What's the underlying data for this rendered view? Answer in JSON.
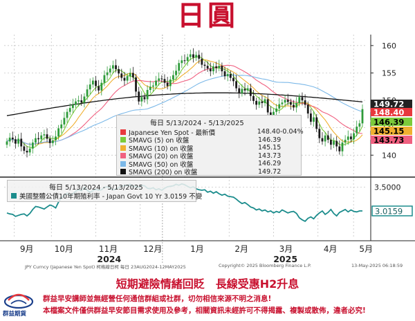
{
  "title": "日圓",
  "subtitle": "短期避險情緒回貶　長線受惠H2升息",
  "disclaimer_1": "群益早安講師並無經營任何通信群組或社群，切勿相信來源不明之消息!",
  "disclaimer_2": "本檔案文件僅供群益早安節目需求使用及參考，相關資訊未經許可不得揭露、複製或散佈，違者必究!",
  "logo_text": "群益期貨",
  "footer": {
    "left": "JPY Curncy (Japanese Yen Spot) 柯格線日柯 每日 23AUG2024-12MAY2025",
    "mid": "Copyright© 2025 Bloomberg Finance L.P.",
    "right": "13-May-2025 06:18:59"
  },
  "legend_main": {
    "date": "每日 5/13/2024 - 5/13/2025",
    "rows": [
      {
        "name": "Japanese Yen Spot - 最新價",
        "value": "148.40",
        "change": "-0.04%",
        "color": "#e8383d"
      },
      {
        "name": "SMAVG (5)  on 收盤",
        "value": "146.39",
        "change": "",
        "color": "#7ccb3a"
      },
      {
        "name": "SMAVG (10)  on 收盤",
        "value": "145.15",
        "change": "",
        "color": "#f0b030"
      },
      {
        "name": "SMAVG (20)  on 收盤",
        "value": "143.73",
        "change": "",
        "color": "#f06080"
      },
      {
        "name": "SMAVG (50)  on 收盤",
        "value": "146.29",
        "change": "",
        "color": "#7bb8e8"
      },
      {
        "name": "SMAVG (200)  on 收盤",
        "value": "149.72",
        "change": "",
        "color": "#111111"
      }
    ]
  },
  "legend_lower": {
    "date": "每日 5/13/2024 - 5/13/2025",
    "row": {
      "name": "美國整體公債10年期殖利率 - Japan Govt 10 Yr 3.0159  不變",
      "color": "#1b8c8c"
    }
  },
  "chart_data": [
    {
      "type": "candlestick",
      "title": "",
      "ylim": [
        136.5,
        162
      ],
      "y_ticks": [
        "160",
        "155",
        "150",
        "145",
        "140"
      ],
      "x_month_labels": [
        "9月",
        "10月",
        "11月",
        "12月",
        "1月",
        "2月",
        "3月",
        "4月",
        "5月"
      ],
      "x_year_labels": [
        "2024",
        "2025"
      ],
      "x_month_positions": [
        0.5,
        3,
        6,
        9,
        12,
        15,
        18,
        21,
        23.4
      ],
      "closes": [
        142.5,
        143.2,
        142.9,
        142.1,
        143.0,
        141.6,
        140.8,
        140.5,
        141.2,
        142.3,
        143.1,
        142.9,
        143.6,
        143.8,
        143.0,
        142.2,
        142.7,
        143.4,
        144.9,
        145.6,
        146.8,
        147.9,
        148.6,
        149.2,
        149.8,
        150.0,
        149.6,
        150.7,
        152.0,
        152.9,
        153.6,
        152.6,
        151.8,
        153.2,
        154.6,
        155.1,
        155.8,
        156.4,
        155.7,
        154.9,
        154.1,
        153.6,
        154.4,
        155.0,
        154.2,
        151.6,
        149.8,
        150.6,
        150.2,
        151.9,
        152.5,
        152.7,
        153.6,
        154.0,
        153.9,
        153.2,
        152.6,
        153.8,
        154.6,
        155.4,
        156.8,
        157.3,
        157.2,
        157.9,
        158.4,
        157.8,
        158.3,
        157.6,
        156.5,
        156.3,
        155.8,
        155.3,
        156.2,
        155.9,
        156.3,
        155.3,
        154.4,
        154.8,
        154.1,
        153.5,
        152.2,
        151.3,
        152.1,
        151.8,
        152.2,
        150.8,
        149.9,
        149.2,
        149.8,
        149.5,
        150.2,
        147.8,
        147.2,
        147.9,
        148.5,
        149.3,
        149.6,
        150.1,
        149.7,
        149.2,
        148.7,
        149.5,
        150.6,
        150.0,
        149.2,
        147.6,
        146.1,
        146.9,
        144.8,
        143.1,
        142.5,
        143.6,
        142.8,
        141.9,
        142.6,
        141.6,
        140.7,
        142.3,
        142.8,
        143.4,
        142.9,
        144.0,
        145.2,
        145.8,
        148.4
      ],
      "ma": [
        {
          "name": "SMAVG (5)",
          "color": "#7ccb3a",
          "last": 146.39
        },
        {
          "name": "SMAVG (10)",
          "color": "#f0b030",
          "last": 145.15
        },
        {
          "name": "SMAVG (20)",
          "color": "#f06080",
          "last": 143.73
        },
        {
          "name": "SMAVG (50)",
          "color": "#7bb8e8",
          "last": 146.29
        },
        {
          "name": "SMAVG (200)",
          "color": "#111111",
          "last": 149.72
        }
      ],
      "price_tags": [
        {
          "value": 149.72,
          "label": "149.72",
          "bg": "#222222",
          "fg": "#ffffff"
        },
        {
          "value": 148.4,
          "label": "148.40",
          "bg": "#e8383d",
          "fg": "#ffffff"
        },
        {
          "value": 146.39,
          "label": "146.39",
          "bg": "#7ccb3a",
          "fg": "#000000"
        },
        {
          "value": 145.15,
          "label": "145.15",
          "bg": "#f0b030",
          "fg": "#000000"
        },
        {
          "value": 143.73,
          "label": "143.73",
          "bg": "#f06080",
          "fg": "#000000"
        }
      ]
    },
    {
      "type": "line",
      "title": "",
      "ylim": [
        2.5,
        3.65
      ],
      "y_ticks": [
        "3.5000"
      ],
      "name": "Japan Govt 10 Yr",
      "color": "#1b8c8c",
      "last_label": "3.0159",
      "values": [
        2.98,
        2.96,
        2.95,
        2.91,
        2.93,
        2.95,
        2.96,
        2.92,
        2.97,
        3.05,
        3.11,
        3.1,
        3.08,
        3.06,
        3.1,
        3.14,
        3.12,
        3.08,
        3.2,
        3.29,
        3.34,
        3.38,
        3.32,
        3.37,
        3.42,
        3.45,
        3.43,
        3.5,
        3.44,
        3.4,
        3.43,
        3.46,
        3.44,
        3.45,
        3.5,
        3.51,
        3.48,
        3.45,
        3.46,
        3.5,
        3.52,
        3.54,
        3.53,
        3.56,
        3.51,
        3.52,
        3.5,
        3.54,
        3.53,
        3.48,
        3.47,
        3.49,
        3.45,
        3.47,
        3.44,
        3.48,
        3.51,
        3.52,
        3.53,
        3.56,
        3.54,
        3.57,
        3.55,
        3.52,
        3.49,
        3.51,
        3.47,
        3.45,
        3.44,
        3.45,
        3.4,
        3.42,
        3.38,
        3.41,
        3.37,
        3.34,
        3.36,
        3.32,
        3.31,
        3.3,
        3.26,
        3.21,
        3.17,
        3.19,
        3.15,
        3.1,
        3.08,
        3.04,
        3.06,
        3.02,
        3.04,
        3.0,
        3.02,
        2.98,
        3.01,
        2.99,
        3.04,
        3.01,
        2.98,
        3.0,
        3.01,
        2.97,
        2.88,
        2.84,
        2.81,
        2.87,
        2.9,
        2.86,
        2.93,
        2.98,
        3.02,
        2.95,
        2.99,
        3.05,
        2.97,
        2.92,
        2.99,
        3.02,
        3.05,
        3.0,
        3.04,
        3.01,
        3.0,
        3.02,
        3.02
      ]
    }
  ]
}
